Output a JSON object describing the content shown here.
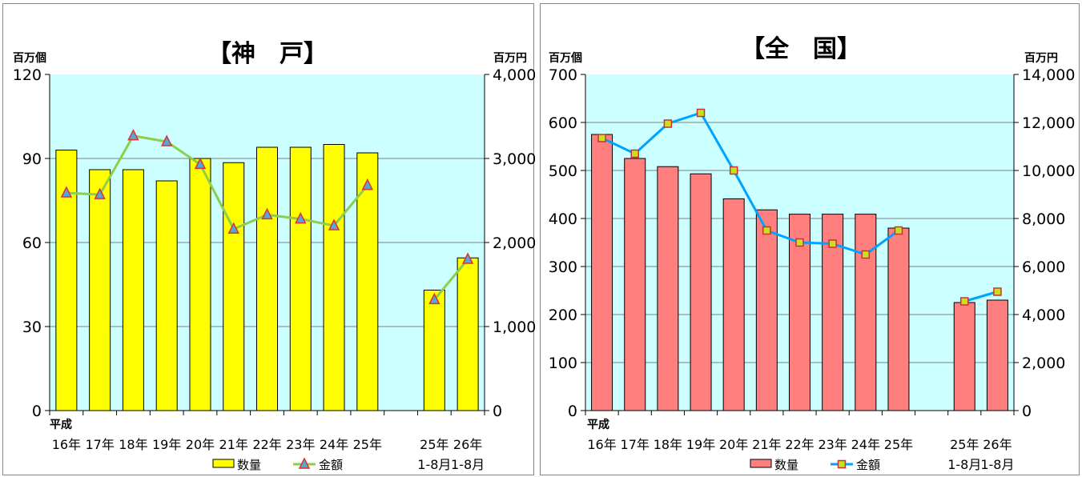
{
  "chart_data": [
    {
      "type": "bar",
      "title": "【神　戸】",
      "ylabel": "百万個",
      "y2label": "百万円",
      "ylim": [
        0,
        120
      ],
      "yticks": [
        0,
        30,
        60,
        90,
        120
      ],
      "y2lim": [
        0,
        4000
      ],
      "y2ticks": [
        "0",
        "1,000",
        "2,000",
        "3,000",
        "4,000"
      ],
      "era_label": "平成",
      "categories": [
        "16年",
        "17年",
        "18年",
        "19年",
        "20年",
        "21年",
        "22年",
        "23年",
        "24年",
        "25年",
        "",
        "25年",
        "26年"
      ],
      "category_sub": [
        "",
        "",
        "",
        "",
        "",
        "",
        "",
        "",
        "",
        "",
        "",
        "1-8月",
        "1-8月"
      ],
      "series": [
        {
          "name": "数量",
          "type": "bar",
          "axis": "left",
          "values": [
            93,
            86,
            86,
            82,
            90,
            88.5,
            94,
            94,
            95,
            92,
            null,
            43,
            54.5
          ]
        },
        {
          "name": "金額",
          "type": "line",
          "axis": "right",
          "values": [
            2590,
            2570,
            3270,
            3200,
            2930,
            2160,
            2330,
            2280,
            2200,
            2680,
            null,
            1320,
            1800
          ]
        }
      ],
      "grid": true,
      "legend": "bottom",
      "colors": {
        "bar": "#ffff00",
        "bar_edge": "#000000",
        "line": "#8ece4d",
        "marker": "#52a8d8",
        "marker_edge": "#e03030",
        "plot_bg": "#ccffff",
        "grid": "#808080"
      }
    },
    {
      "type": "bar",
      "title": "【全　国】",
      "ylabel": "百万個",
      "y2label": "百万円",
      "ylim": [
        0,
        700
      ],
      "yticks": [
        0,
        100,
        200,
        300,
        400,
        500,
        600,
        700
      ],
      "y2lim": [
        0,
        14000
      ],
      "y2ticks": [
        "0",
        "2,000",
        "4,000",
        "6,000",
        "8,000",
        "10,000",
        "12,000",
        "14,000"
      ],
      "era_label": "平成",
      "categories": [
        "16年",
        "17年",
        "18年",
        "19年",
        "20年",
        "21年",
        "22年",
        "23年",
        "24年",
        "25年",
        "",
        "25年",
        "26年"
      ],
      "category_sub": [
        "",
        "",
        "",
        "",
        "",
        "",
        "",
        "",
        "",
        "",
        "",
        "1-8月",
        "1-8月"
      ],
      "series": [
        {
          "name": "数量",
          "type": "bar",
          "axis": "left",
          "values": [
            575,
            525,
            508,
            493,
            441,
            418,
            409,
            409,
            409,
            380,
            null,
            225,
            230
          ]
        },
        {
          "name": "金額",
          "type": "line",
          "axis": "right",
          "values": [
            11350,
            10700,
            11950,
            12400,
            10000,
            7500,
            7000,
            6950,
            6500,
            7500,
            null,
            4550,
            4950
          ]
        }
      ],
      "grid": true,
      "legend": "bottom",
      "colors": {
        "bar": "#ff7f7f",
        "bar_edge": "#000000",
        "line": "#00a2ff",
        "marker": "#c8e020",
        "marker_edge": "#c83232",
        "plot_bg": "#ccffff",
        "grid": "#808080"
      }
    }
  ]
}
